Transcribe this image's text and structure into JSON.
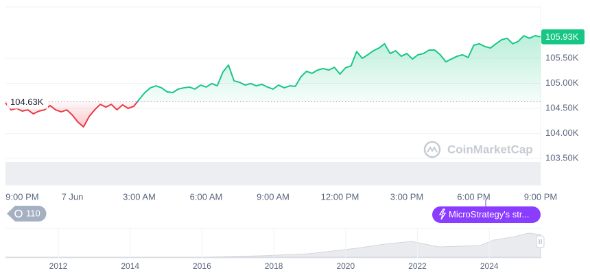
{
  "chart_data": {
    "type": "line",
    "watermark": "CoinMarketCap",
    "categories": [
      null,
      null,
      null,
      "9:00 PM",
      null,
      null,
      null,
      null,
      null,
      null,
      null,
      null,
      "7 Jun",
      null,
      null,
      null,
      null,
      null,
      null,
      null,
      null,
      null,
      null,
      null,
      "3:00 AM",
      null,
      null,
      null,
      null,
      null,
      null,
      null,
      null,
      null,
      null,
      null,
      "6:00 AM",
      null,
      null,
      null,
      null,
      null,
      null,
      null,
      null,
      null,
      null,
      null,
      "9:00 AM",
      null,
      null,
      null,
      null,
      null,
      null,
      null,
      null,
      null,
      null,
      null,
      "12:00 PM",
      null,
      null,
      null,
      null,
      null,
      null,
      null,
      null,
      null,
      null,
      null,
      "3:00 PM",
      null,
      null,
      null,
      null,
      null,
      null,
      null,
      null,
      null,
      null,
      null,
      "6:00 PM",
      null,
      null,
      null,
      null,
      null,
      null,
      null,
      null,
      null,
      null,
      null,
      "9:00 PM"
    ],
    "values": [
      104610,
      104470,
      104500,
      104445,
      104470,
      104390,
      104445,
      104470,
      104555,
      104470,
      104430,
      104470,
      104365,
      104225,
      104130,
      104335,
      104470,
      104580,
      104525,
      104580,
      104470,
      104570,
      104500,
      104540,
      104680,
      104815,
      104910,
      104950,
      104910,
      104830,
      104815,
      104885,
      104910,
      104925,
      104885,
      104965,
      104925,
      104995,
      104950,
      105225,
      105365,
      105050,
      105020,
      104965,
      104995,
      104950,
      104980,
      104925,
      104885,
      104965,
      104910,
      104950,
      104940,
      105130,
      105240,
      105200,
      105265,
      105295,
      105265,
      105320,
      105185,
      105310,
      105350,
      105635,
      105500,
      105570,
      105650,
      105705,
      105790,
      105595,
      105650,
      105540,
      105595,
      105485,
      105570,
      105595,
      105665,
      105665,
      105570,
      105430,
      105485,
      105540,
      105570,
      105515,
      105760,
      105790,
      105735,
      105705,
      105790,
      105870,
      105900,
      105790,
      105840,
      105950,
      105900,
      105950,
      105930
    ],
    "up_color": "#16c784",
    "down_color": "#ea3943",
    "baseline": {
      "value": 104630,
      "label": "104.63K"
    },
    "current_price": {
      "value": 105930,
      "label": "105.93K"
    },
    "ylim": [
      102966,
      106527
    ],
    "yticks": [
      {
        "value": 103500,
        "label": "103.50K"
      },
      {
        "value": 104000,
        "label": "104.00K"
      },
      {
        "value": 104500,
        "label": "104.50K"
      },
      {
        "value": 105000,
        "label": "105.00K"
      },
      {
        "value": 105500,
        "label": "105.50K"
      }
    ],
    "grid": true,
    "history_badge": "110",
    "event_badge": "MicroStrategy's str...",
    "navigator_labels": [
      "2012",
      "2014",
      "2016",
      "2018",
      "2020",
      "2022",
      "2024"
    ]
  }
}
